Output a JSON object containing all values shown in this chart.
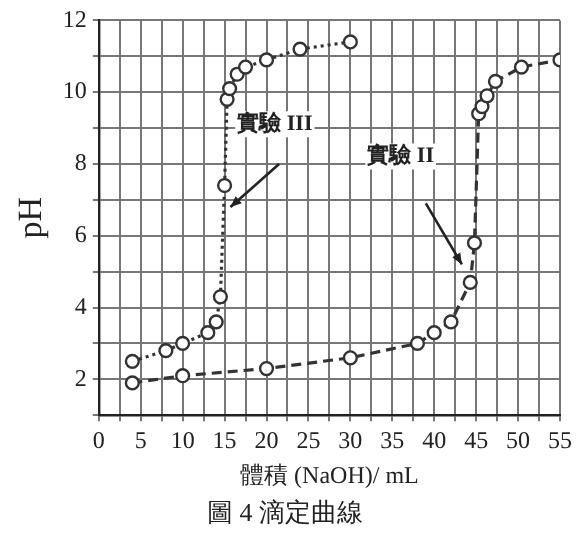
{
  "chart_data": {
    "type": "line",
    "title": "圖 4 滴定曲線",
    "xlabel": "體積 (NaOH)/ mL",
    "ylabel": "pH",
    "series": [
      {
        "name": "實驗 III",
        "color": "#333333",
        "line_style": "dotted",
        "x": [
          4,
          8,
          10,
          13,
          14,
          14.5,
          15,
          15.3,
          15.6,
          16.5,
          17.5,
          20,
          24,
          30
        ],
        "values": [
          2.5,
          2.8,
          3.0,
          3.3,
          3.6,
          4.3,
          7.4,
          9.8,
          10.1,
          10.5,
          10.7,
          10.9,
          11.2,
          11.4
        ]
      },
      {
        "name": "實驗 II",
        "color": "#333333",
        "line_style": "dashed",
        "x": [
          4,
          10,
          20,
          30,
          38,
          40,
          42,
          44.3,
          44.8,
          45.3,
          45.7,
          46.3,
          47.3,
          50.4,
          55
        ],
        "values": [
          1.9,
          2.1,
          2.3,
          2.6,
          3.0,
          3.3,
          3.6,
          4.7,
          5.8,
          9.4,
          9.6,
          9.9,
          10.3,
          10.7,
          10.9
        ]
      }
    ],
    "xlim": [
      0,
      55
    ],
    "xticks": [
      0,
      {
        "value": 2.5,
        "label": null
      },
      5,
      {
        "value": 7.5,
        "label": null
      },
      10,
      {
        "value": 12.5,
        "label": null
      },
      15,
      {
        "value": 17.5,
        "label": null
      },
      20,
      {
        "value": 22.5,
        "label": null
      },
      25,
      {
        "value": 27.5,
        "label": null
      },
      30,
      {
        "value": 32.5,
        "label": null
      },
      35,
      {
        "value": 37.5,
        "label": null
      },
      40,
      {
        "value": 42.5,
        "label": null
      },
      45,
      {
        "value": 47.5,
        "label": null
      },
      50,
      {
        "value": 52.5,
        "label": null
      },
      55
    ],
    "ylim": [
      1,
      12
    ],
    "yticks": [
      {
        "value": 1,
        "label": null
      },
      2,
      {
        "value": 3,
        "label": null
      },
      4,
      {
        "value": 5,
        "label": null
      },
      6,
      {
        "value": 7,
        "label": null
      },
      8,
      {
        "value": 9,
        "label": null
      },
      10,
      {
        "value": 11,
        "label": null
      },
      12
    ],
    "grid": true,
    "marker": "circle",
    "legend": false
  }
}
